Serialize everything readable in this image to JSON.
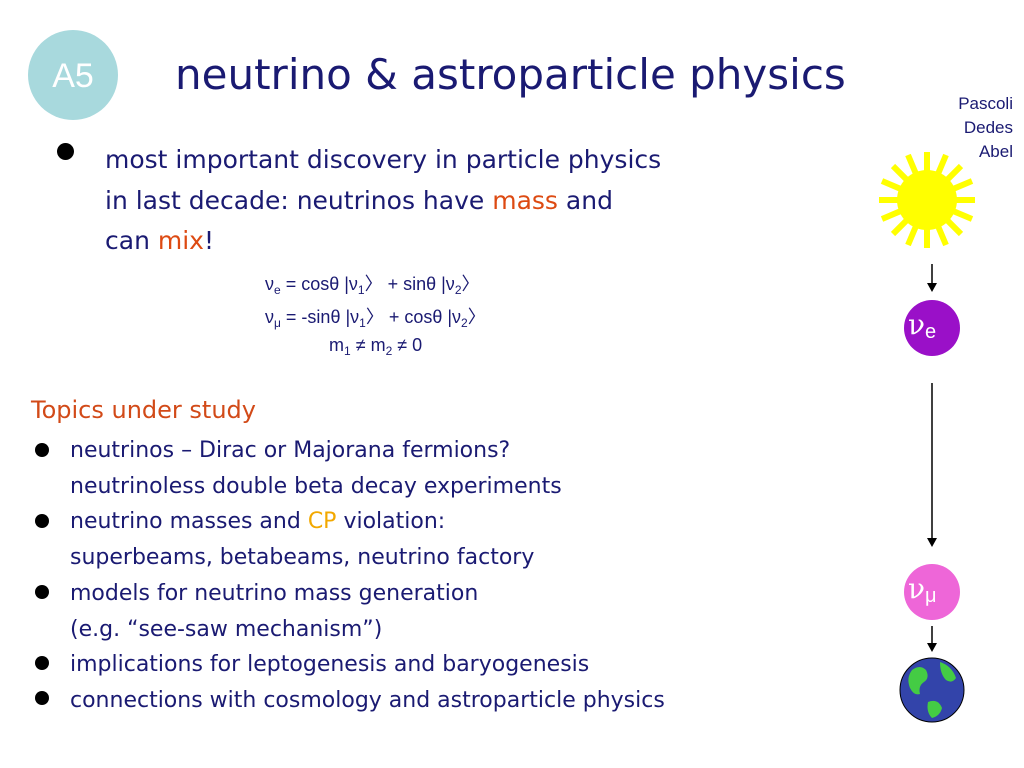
{
  "badge": "A5",
  "title": "neutrino & astroparticle physics",
  "authors": [
    "Pascoli",
    "Dedes",
    "Abel"
  ],
  "intro": [
    [
      "most important discovery in particle physics"
    ],
    [
      "in last decade: neutrinos have ",
      "mass",
      " and"
    ],
    [
      "can ",
      "mix",
      "!"
    ]
  ],
  "equations": [
    [
      "ν",
      "e",
      " =  cosθ |ν",
      "1",
      "〉 +  sinθ |ν",
      "2",
      "〉"
    ],
    [
      "ν",
      "μ",
      " = -sinθ |ν",
      "1",
      "〉 + cosθ |ν",
      "2",
      "〉"
    ],
    [
      "m",
      "1",
      " ≠  m",
      "2",
      " ≠ 0"
    ]
  ],
  "topics": {
    "heading": "Topics under study",
    "items": [
      [
        [
          "neutrinos – Dirac or Majorana fermions?"
        ],
        [
          "neutrinoless double beta decay experiments"
        ]
      ],
      [
        [
          "neutrino masses and ",
          "CP",
          " violation:"
        ],
        [
          "superbeams, betabeams, neutrino factory"
        ]
      ],
      [
        [
          "models for neutrino mass generation"
        ],
        [
          "(e.g. “see-saw mechanism”)"
        ]
      ],
      [
        [
          "implications for leptogenesis and baryogenesis"
        ]
      ],
      [
        [
          "connections with cosmology and astroparticle physics"
        ]
      ]
    ]
  },
  "diagram": {
    "nu_e": [
      "ν",
      "e"
    ],
    "nu_mu": [
      "ν",
      "μ"
    ]
  }
}
